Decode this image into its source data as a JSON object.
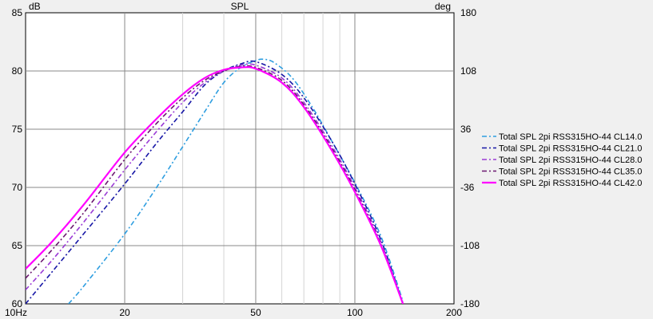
{
  "chart_data": {
    "type": "line",
    "title": "SPL",
    "y_unit_left": "dB",
    "y_unit_right": "deg",
    "x_scale": "log",
    "xlim": [
      10,
      200
    ],
    "ylim": [
      60,
      85
    ],
    "ylim_right": [
      -180,
      180
    ],
    "x_ticks": [
      {
        "value": 10,
        "label": "10Hz"
      },
      {
        "value": 20,
        "label": "20"
      },
      {
        "value": 50,
        "label": "50"
      },
      {
        "value": 100,
        "label": "100"
      },
      {
        "value": 200,
        "label": "200"
      }
    ],
    "y_ticks": [
      60,
      65,
      70,
      75,
      80,
      85
    ],
    "y_ticks_right": [
      -180,
      -108,
      -36,
      36,
      108,
      180
    ],
    "grid": true,
    "legend_position": "right",
    "series": [
      {
        "name": "Total SPL 2pi RSS315HO-44 CL14.0",
        "color": "#2e9ee0",
        "dash": "6,3,2,3",
        "x": [
          13.5,
          15,
          20,
          25,
          30,
          35,
          40,
          45,
          50,
          53,
          57,
          65,
          75,
          85,
          100,
          120,
          140
        ],
        "y": [
          60.0,
          61.5,
          66.0,
          70.0,
          73.5,
          76.5,
          79.0,
          80.3,
          80.9,
          81.0,
          80.7,
          79.3,
          76.7,
          74.0,
          70.4,
          65.8,
          60.2
        ]
      },
      {
        "name": "Total SPL 2pi RSS315HO-44 CL21.0",
        "color": "#1616a6",
        "dash": "6,3,2,3",
        "x": [
          10,
          12,
          15,
          20,
          25,
          30,
          35,
          40,
          45,
          50,
          60,
          70,
          85,
          100,
          120,
          140
        ],
        "y": [
          60.0,
          62.7,
          66.0,
          70.3,
          73.8,
          76.5,
          78.8,
          80.0,
          80.6,
          80.8,
          79.7,
          77.7,
          74.0,
          70.3,
          65.5,
          60.0
        ]
      },
      {
        "name": "Total SPL 2pi RSS315HO-44 CL28.0",
        "color": "#9a3ad6",
        "dash": "6,3,2,3",
        "x": [
          10,
          12,
          15,
          20,
          25,
          30,
          35,
          40,
          45,
          50,
          60,
          70,
          85,
          100,
          120,
          140
        ],
        "y": [
          61.2,
          63.7,
          67.0,
          71.5,
          74.8,
          77.3,
          79.0,
          80.0,
          80.5,
          80.5,
          79.4,
          77.3,
          73.6,
          70.0,
          65.3,
          60.0
        ]
      },
      {
        "name": "Total SPL 2pi RSS315HO-44 CL35.0",
        "color": "#6b1670",
        "dash": "6,3,2,3",
        "x": [
          10,
          12,
          15,
          20,
          25,
          30,
          35,
          40,
          45,
          50,
          60,
          70,
          85,
          100,
          120,
          140
        ],
        "y": [
          62.2,
          64.6,
          67.8,
          72.4,
          75.5,
          77.7,
          79.2,
          80.0,
          80.4,
          80.3,
          79.2,
          77.1,
          73.4,
          69.8,
          65.1,
          60.0
        ]
      },
      {
        "name": "Total SPL 2pi RSS315HO-44 CL42.0",
        "color": "#ff00ff",
        "dash": "",
        "x": [
          10,
          12,
          15,
          20,
          25,
          30,
          35,
          40,
          45,
          50,
          60,
          70,
          85,
          100,
          120,
          140
        ],
        "y": [
          63.0,
          65.3,
          68.5,
          73.0,
          75.9,
          78.0,
          79.4,
          80.1,
          80.3,
          80.2,
          79.0,
          76.9,
          73.2,
          69.6,
          65.0,
          60.0
        ]
      }
    ]
  }
}
